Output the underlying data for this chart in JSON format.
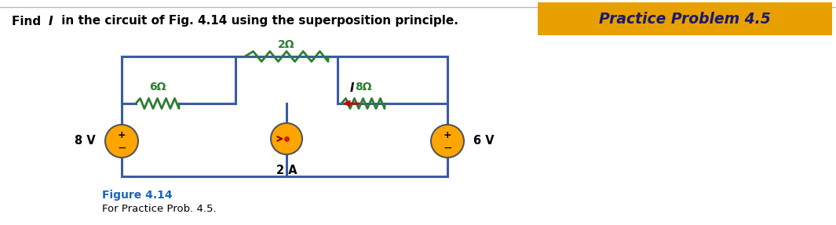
{
  "practice_label": "Practice Problem 4.5",
  "practice_bg": "#E8A000",
  "practice_text_color": "#1a1a6e",
  "figure_label": "Figure 4.14",
  "figure_sublabel": "For Practice Prob. 4.5.",
  "resistor_6": "6Ω",
  "resistor_2": "2Ω",
  "resistor_8": "8Ω",
  "source_8v": "8 V",
  "source_2a": "2 A",
  "source_6v": "6 V",
  "current_label": "I",
  "wire_color": "#3B5BA5",
  "resistor_color": "#2E7D32",
  "source_color": "#FFA500",
  "source_edge_color": "#555555",
  "background_color": "#FFFFFF",
  "text_color": "#000000",
  "figure_label_color": "#1565C0",
  "arrow_color": "#CC0000",
  "top_border_color": "#BBBBBB"
}
